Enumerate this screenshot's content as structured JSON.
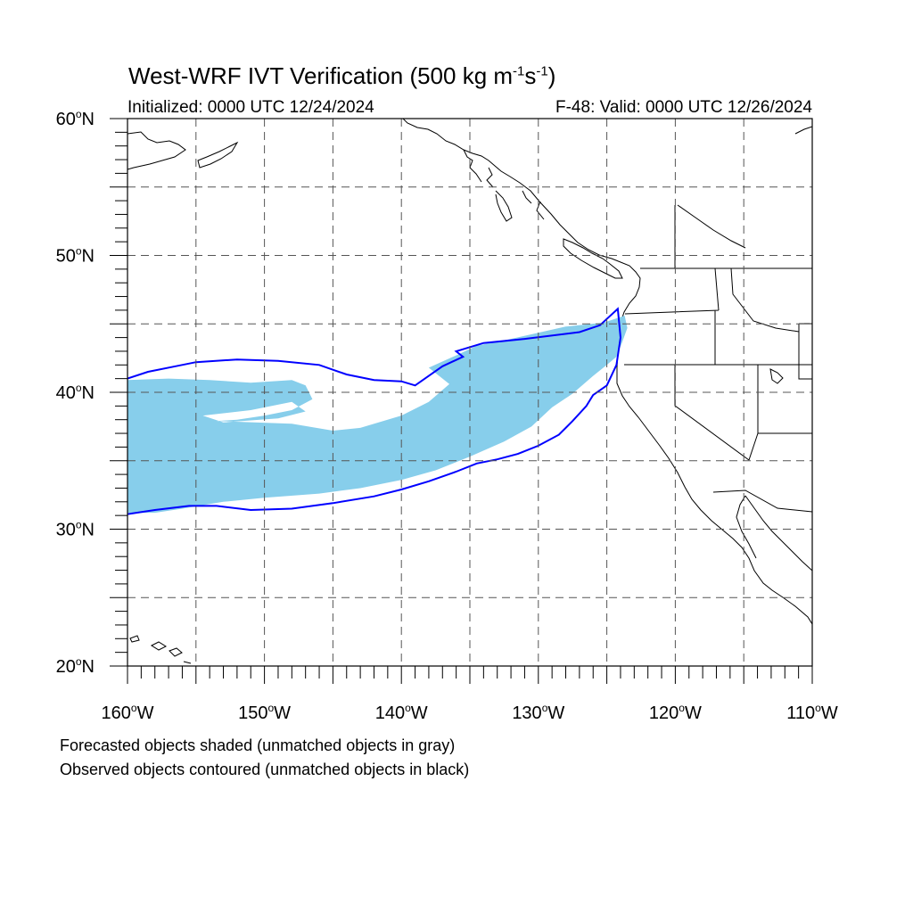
{
  "title": {
    "text": "West-WRF IVT Verification (500 kg m",
    "sup1": "-1",
    "mid": "s",
    "sup2": "-1",
    "close": ")"
  },
  "initialized": "Initialized: 0000 UTC 12/24/2024",
  "valid": "F-48: Valid: 0000 UTC 12/26/2024",
  "map": {
    "lon_range": [
      -160,
      -110
    ],
    "lat_range": [
      20,
      60
    ],
    "grid_interval_deg": 5,
    "grid_style": "dashed",
    "lat_labels": [
      {
        "value": 60,
        "num": "60",
        "hemi": "N"
      },
      {
        "value": 50,
        "num": "50",
        "hemi": "N"
      },
      {
        "value": 40,
        "num": "40",
        "hemi": "N"
      },
      {
        "value": 30,
        "num": "30",
        "hemi": "N"
      },
      {
        "value": 20,
        "num": "20",
        "hemi": "N"
      }
    ],
    "lon_labels": [
      {
        "value": -160,
        "num": "160",
        "hemi": "W"
      },
      {
        "value": -150,
        "num": "150",
        "hemi": "W"
      },
      {
        "value": -140,
        "num": "140",
        "hemi": "W"
      },
      {
        "value": -130,
        "num": "130",
        "hemi": "W"
      },
      {
        "value": -120,
        "num": "120",
        "hemi": "W"
      },
      {
        "value": -110,
        "num": "110",
        "hemi": "W"
      }
    ],
    "colors": {
      "forecast_fill": "#87ceeb",
      "observed_contour": "#0000ff",
      "coast": "#000000",
      "grid": "#555555"
    }
  },
  "forecast_object": {
    "polygon": [
      [
        -160,
        40.9
      ],
      [
        -157,
        41
      ],
      [
        -154,
        40.9
      ],
      [
        -151,
        40.7
      ],
      [
        -148,
        40.9
      ],
      [
        -147,
        40.5
      ],
      [
        -146.5,
        39.5
      ],
      [
        -148,
        38.7
      ],
      [
        -150,
        38.3
      ],
      [
        -152,
        38
      ],
      [
        -153.5,
        37.9
      ],
      [
        -148,
        37.7
      ],
      [
        -145,
        37.2
      ],
      [
        -143,
        37.4
      ],
      [
        -140,
        38.3
      ],
      [
        -138,
        39.3
      ],
      [
        -136.5,
        40.6
      ],
      [
        -138,
        41.8
      ],
      [
        -136,
        42.7
      ],
      [
        -134.5,
        43.4
      ],
      [
        -132,
        43.9
      ],
      [
        -128,
        44.8
      ],
      [
        -125.2,
        45.1
      ],
      [
        -123.7,
        45.6
      ],
      [
        -123.5,
        44.7
      ],
      [
        -123.9,
        43.6
      ],
      [
        -124.3,
        42.6
      ],
      [
        -125,
        42
      ],
      [
        -126,
        41.2
      ],
      [
        -127.5,
        39.9
      ],
      [
        -129,
        38.9
      ],
      [
        -130.5,
        37.5
      ],
      [
        -132.5,
        36.4
      ],
      [
        -135,
        35.3
      ],
      [
        -137.5,
        34.3
      ],
      [
        -140,
        33.6
      ],
      [
        -143,
        33
      ],
      [
        -146,
        32.6
      ],
      [
        -150,
        32.3
      ],
      [
        -153,
        32
      ],
      [
        -156,
        31.5
      ],
      [
        -158,
        31.2
      ],
      [
        -160,
        31.2
      ]
    ],
    "hole": [
      [
        -154.5,
        38.3
      ],
      [
        -151,
        38.7
      ],
      [
        -148,
        39.3
      ],
      [
        -147,
        38.6
      ],
      [
        -149,
        38.1
      ],
      [
        -153,
        37.8
      ]
    ]
  },
  "observed_object": {
    "contour": [
      [
        -160,
        41
      ],
      [
        -158.5,
        41.5
      ],
      [
        -156.5,
        41.9
      ],
      [
        -155,
        42.2
      ],
      [
        -152,
        42.4
      ],
      [
        -149,
        42.3
      ],
      [
        -146,
        42
      ],
      [
        -144,
        41.3
      ],
      [
        -142,
        40.9
      ],
      [
        -140,
        40.8
      ],
      [
        -139,
        40.5
      ],
      [
        -138,
        41.2
      ],
      [
        -137,
        41.9
      ],
      [
        -135.5,
        42.6
      ],
      [
        -136,
        43
      ],
      [
        -134,
        43.6
      ],
      [
        -131,
        43.9
      ],
      [
        -127,
        44.4
      ],
      [
        -125.5,
        44.9
      ],
      [
        -124.2,
        46.1
      ],
      [
        -124,
        44
      ],
      [
        -124.3,
        42
      ],
      [
        -125,
        40.5
      ],
      [
        -126,
        39.8
      ],
      [
        -126.5,
        39
      ],
      [
        -127.5,
        37.9
      ],
      [
        -128.5,
        36.9
      ],
      [
        -130,
        36.1
      ],
      [
        -131.5,
        35.5
      ],
      [
        -133,
        35.1
      ],
      [
        -134.5,
        34.8
      ],
      [
        -136,
        34.2
      ],
      [
        -138,
        33.5
      ],
      [
        -140,
        32.9
      ],
      [
        -142,
        32.4
      ],
      [
        -145,
        31.9
      ],
      [
        -148,
        31.5
      ],
      [
        -151,
        31.4
      ],
      [
        -153.5,
        31.7
      ],
      [
        -155.5,
        31.7
      ],
      [
        -158,
        31.4
      ],
      [
        -160,
        31.1
      ]
    ]
  },
  "notes": {
    "forecast": "Forecasted objects shaded (unmatched objects in gray)",
    "observed": "Observed objects contoured (unmatched objects in black)"
  }
}
